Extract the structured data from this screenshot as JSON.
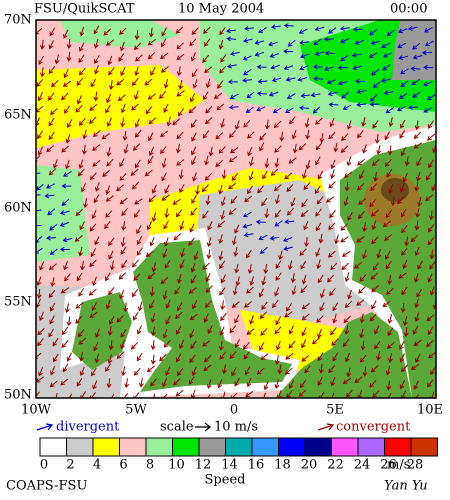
{
  "header": {
    "source": "FSU/QuikSCAT",
    "date": "10 May 2004",
    "time": "00:00"
  },
  "map": {
    "lat_labels": [
      "70N",
      "65N",
      "60N",
      "55N",
      "50N"
    ],
    "lon_labels": [
      "10W",
      "5W",
      "0",
      "5E",
      "10E"
    ]
  },
  "legend": {
    "divergent": "divergent",
    "scale": "scale",
    "scale_value": "10 m/s",
    "convergent": "convergent"
  },
  "speed_scale": {
    "labels": [
      0,
      2,
      4,
      6,
      8,
      10,
      12,
      14,
      16,
      18,
      20,
      22,
      24,
      26,
      28
    ],
    "colors": [
      "#ffffff",
      "#cccccc",
      "#ffff00",
      "#ffc4c4",
      "#99ee99",
      "#00e600",
      "#999999",
      "#00aaaa",
      "#3399ff",
      "#0000ff",
      "#000088",
      "#ff55ff",
      "#aa66ff",
      "#ff0000",
      "#cc3300"
    ],
    "unit": "m/s",
    "title": "Speed"
  },
  "footer": {
    "credit": "COAPS-FSU",
    "signature": "Yan Yu"
  }
}
